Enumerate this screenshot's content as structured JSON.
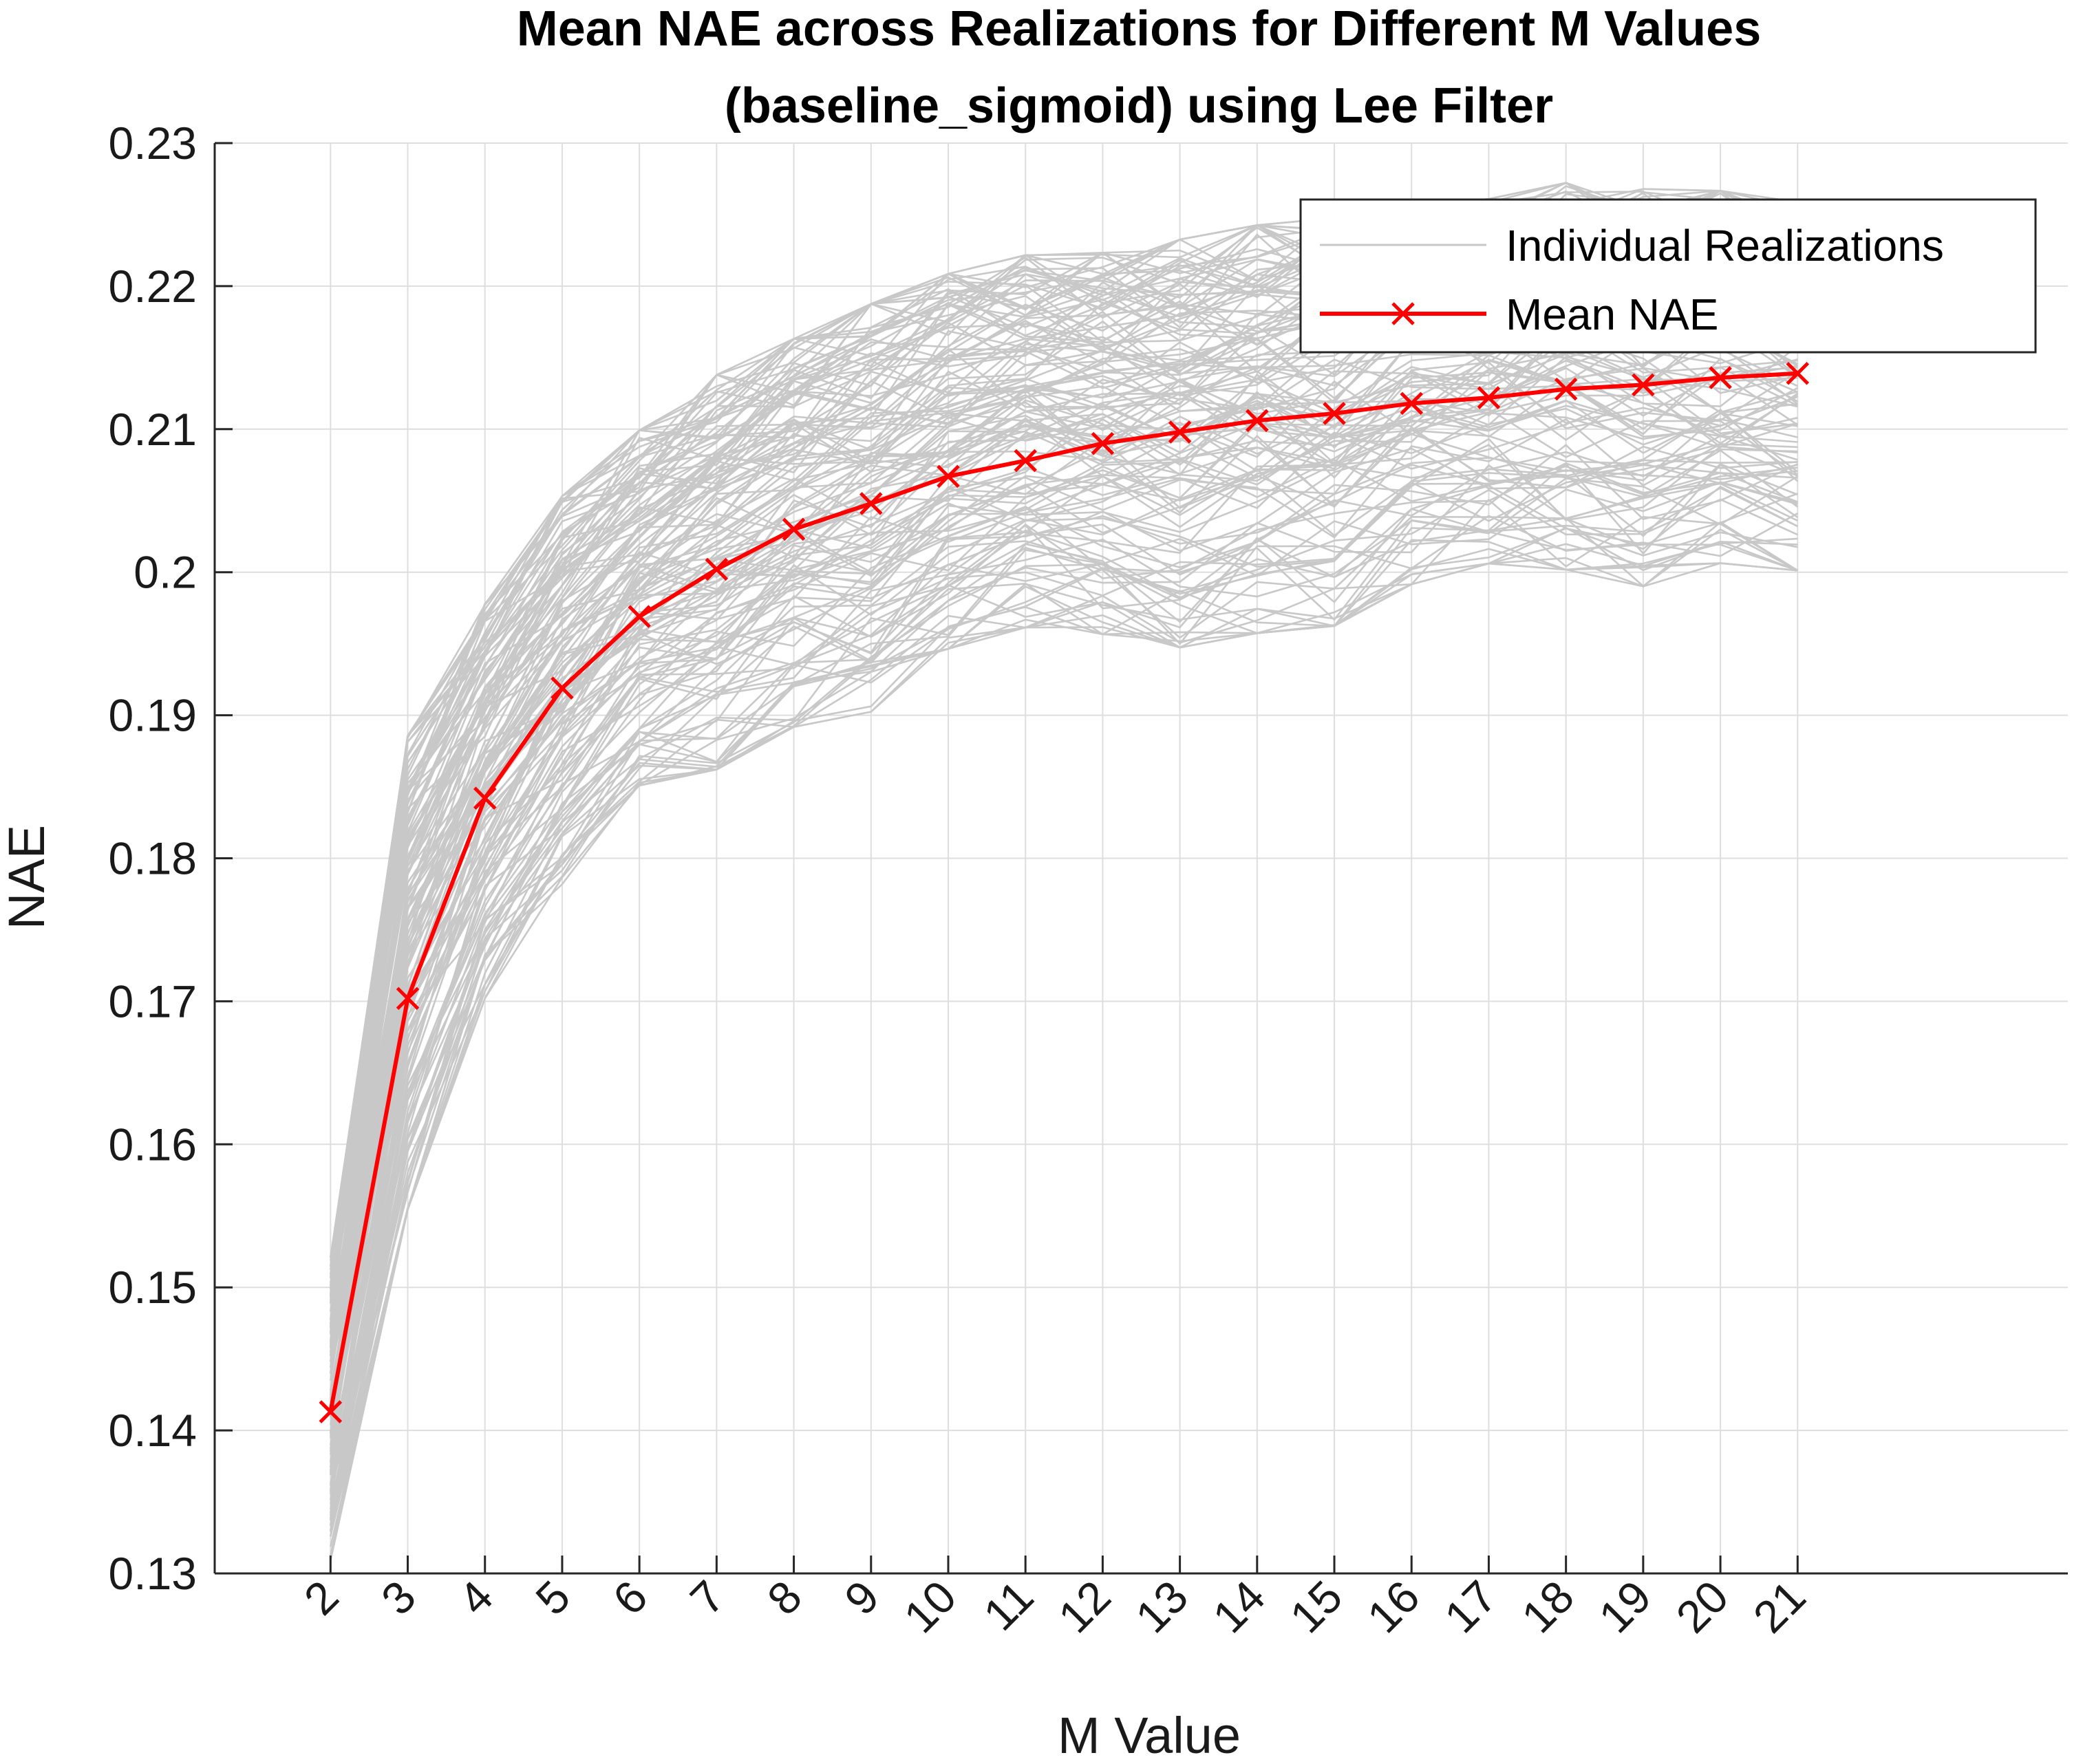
{
  "chart_data": {
    "type": "line",
    "title": "Mean NAE across Realizations for Different M Values",
    "subtitle": "(baseline_sigmoid) using Lee Filter",
    "xlabel": "M Value",
    "ylabel": "NAE",
    "x": [
      2,
      3,
      4,
      5,
      6,
      7,
      8,
      9,
      10,
      11,
      12,
      13,
      14,
      15,
      16,
      17,
      18,
      19,
      20,
      21
    ],
    "x_tick_labels": [
      "2",
      "3",
      "4",
      "5",
      "6",
      "7",
      "8",
      "9",
      "10",
      "11",
      "12",
      "13",
      "14",
      "15",
      "16",
      "17",
      "18",
      "19",
      "20",
      "21"
    ],
    "xlim": [
      0.5,
      24.5
    ],
    "ylim": [
      0.13,
      0.23
    ],
    "y_ticks": [
      0.13,
      0.14,
      0.15,
      0.16,
      0.17,
      0.18,
      0.19,
      0.2,
      0.21,
      0.22,
      0.23
    ],
    "y_tick_labels": [
      "0.13",
      "0.14",
      "0.15",
      "0.16",
      "0.17",
      "0.18",
      "0.19",
      "0.2",
      "0.21",
      "0.22",
      "0.23"
    ],
    "grid": true,
    "legend_position": "top-right",
    "series": [
      {
        "name": "Individual Realizations",
        "color": "#c8c8c8",
        "marker": "none",
        "envelope_upper": [
          0.153,
          0.19,
          0.199,
          0.2065,
          0.211,
          0.215,
          0.2175,
          0.22,
          0.222,
          0.2233,
          0.2235,
          0.2245,
          0.2255,
          0.226,
          0.2268,
          0.2272,
          0.2284,
          0.228,
          0.2278,
          0.227
        ],
        "envelope_lower": [
          0.13,
          0.154,
          0.169,
          0.177,
          0.184,
          0.185,
          0.188,
          0.189,
          0.1935,
          0.195,
          0.1945,
          0.1935,
          0.1945,
          0.195,
          0.198,
          0.1995,
          0.199,
          0.1978,
          0.1995,
          0.199
        ]
      },
      {
        "name": "Mean NAE",
        "color": "#ff0000",
        "marker": "x",
        "values": [
          0.1413,
          0.1702,
          0.1842,
          0.1919,
          0.1969,
          0.2002,
          0.203,
          0.2048,
          0.2067,
          0.2078,
          0.209,
          0.2098,
          0.2106,
          0.2111,
          0.2118,
          0.2122,
          0.2128,
          0.2131,
          0.2136,
          0.2139
        ]
      }
    ]
  }
}
